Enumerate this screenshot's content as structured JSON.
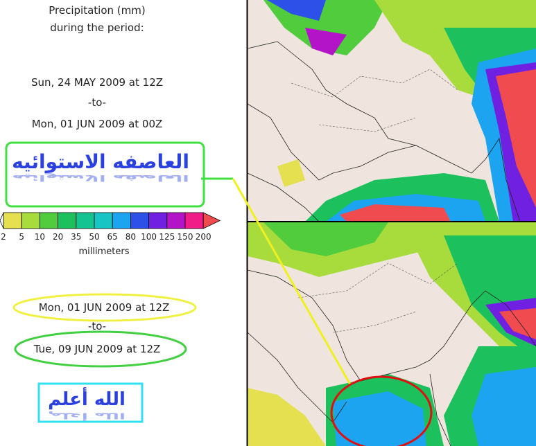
{
  "panel": {
    "title_lines": [
      "Precipitation (mm)",
      "during the period:"
    ],
    "period1": {
      "start": "Sun, 24 MAY 2009 at 12Z",
      "separator": "-to-",
      "end": "Mon, 01 JUN 2009 at 00Z"
    },
    "storm_label": "العاصفه الاستوائيه",
    "legend": {
      "ticks": [
        2,
        5,
        10,
        20,
        35,
        50,
        65,
        80,
        100,
        125,
        150,
        200
      ],
      "colors": [
        "#e4e050",
        "#a8dc3c",
        "#50cc3c",
        "#1cc05c",
        "#14c490",
        "#18c4c4",
        "#1ca4f0",
        "#2c50e8",
        "#7020e0",
        "#b414c8",
        "#f01c88",
        "#f04c50"
      ],
      "unit": "millimeters"
    },
    "period2": {
      "start": "Mon, 01 JUN 2009 at 12Z",
      "separator": "-to-",
      "end": "Tue, 09 JUN 2009 at 12Z"
    },
    "note": "الله أعلم"
  }
}
